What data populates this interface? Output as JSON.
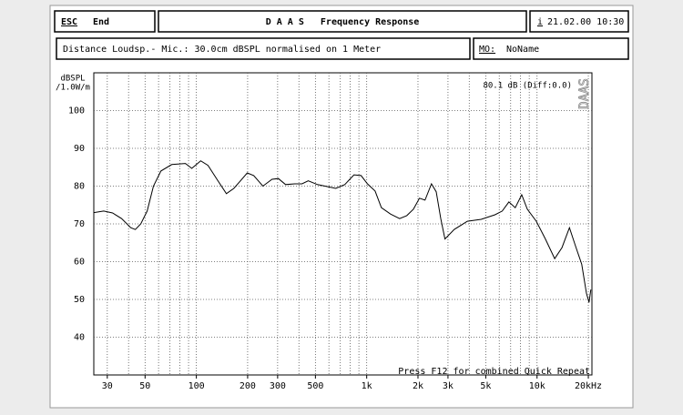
{
  "header": {
    "esc_key": "ESC",
    "esc_label": "End",
    "title": "D A A S   Frequency Response",
    "info_key": "i",
    "datetime": "21.02.00 10:30",
    "description": "Distance Loudsp.- Mic.: 30.0cm dBSPL normalised on 1 Meter",
    "mo_key": "MO:",
    "mo_value": "NoName"
  },
  "chart_data": {
    "type": "line",
    "xscale": "log",
    "ylabel": [
      "dBSPL",
      "/1.0W/m"
    ],
    "annotation": "80.1 dB (Diff:0.0)",
    "watermark": "DAAS",
    "footer": "Press F12 for combined Quick Repeat",
    "xlim": [
      25,
      21000
    ],
    "ylim": [
      30,
      110
    ],
    "xticks": [
      30,
      50,
      100,
      200,
      300,
      500,
      {
        "value": 1000,
        "label": "1k"
      },
      {
        "value": 2000,
        "label": "2k"
      },
      {
        "value": 3000,
        "label": "3k"
      },
      {
        "value": 5000,
        "label": "5k"
      },
      {
        "value": 10000,
        "label": "10k"
      },
      {
        "value": 20000,
        "label": "20kHz"
      }
    ],
    "x_minor_ticks": [
      40,
      60,
      70,
      80,
      90,
      400,
      600,
      700,
      800,
      900,
      4000,
      6000,
      7000,
      8000,
      9000
    ],
    "yticks": [
      40,
      50,
      60,
      70,
      80,
      90,
      100
    ],
    "grid": true,
    "color": "#000000",
    "x": [
      25,
      28.6,
      32.2,
      36.4,
      41.2,
      43.8,
      47.2,
      51.4,
      56,
      61.9,
      71.7,
      86.3,
      94,
      106,
      117,
      133,
      150,
      166,
      183,
      199,
      217,
      246,
      278,
      303,
      334,
      378,
      417,
      454,
      514,
      582,
      658,
      744,
      842,
      927,
      1010,
      1120,
      1220,
      1380,
      1560,
      1720,
      1880,
      2040,
      2200,
      2400,
      2560,
      2720,
      2880,
      3260,
      3900,
      4700,
      5660,
      6250,
      6830,
      7450,
      8130,
      8760,
      9900,
      11200,
      12700,
      14000,
      15500,
      16800,
      18300,
      19500,
      20200,
      20700
    ],
    "values": [
      73,
      73.4,
      72.9,
      71.4,
      69,
      68.5,
      70,
      73.4,
      80,
      84,
      85.7,
      86,
      84.7,
      86.7,
      85.5,
      81.6,
      78,
      79.4,
      81.6,
      83.5,
      82.8,
      80,
      81.8,
      82,
      80.4,
      80.6,
      80.6,
      81.4,
      80.4,
      79.9,
      79.4,
      80.4,
      83,
      82.8,
      80.6,
      78.7,
      74.3,
      72.6,
      71.4,
      72.2,
      73.9,
      76.8,
      76.3,
      80.6,
      78.5,
      71.4,
      66,
      68.5,
      70.7,
      71.2,
      72.4,
      73.4,
      75.8,
      74.3,
      77.7,
      73.9,
      70.7,
      66,
      60.8,
      63.7,
      69,
      64.2,
      59.3,
      51.6,
      49.2,
      52.6
    ]
  }
}
